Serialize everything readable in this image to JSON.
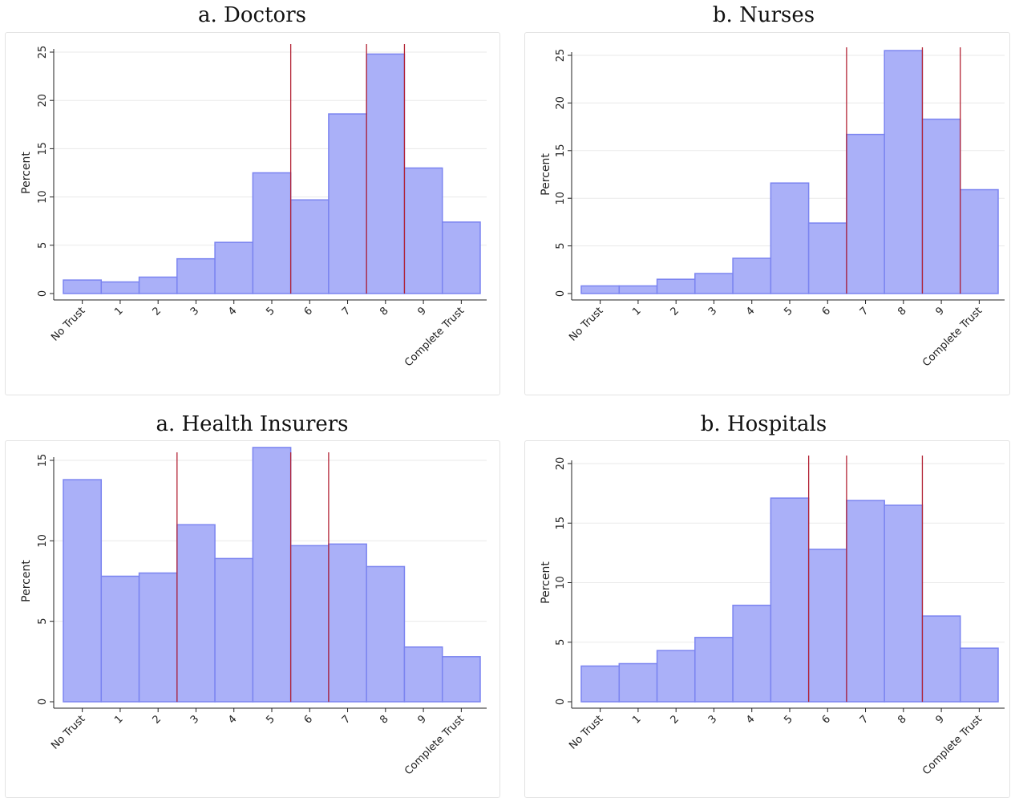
{
  "categories": [
    "No Trust",
    "1",
    "2",
    "3",
    "4",
    "5",
    "6",
    "7",
    "8",
    "9",
    "Complete Trust"
  ],
  "colors": {
    "bar_fill": "#aab0f8",
    "bar_stroke": "#7b84f0",
    "ref_line": "#b22234",
    "grid": "#eaeaea"
  },
  "chart_data": [
    {
      "type": "bar",
      "title": "a. Doctors",
      "ylabel": "Percent",
      "xlabel": "",
      "ylim": [
        0,
        25
      ],
      "yticks": [
        0,
        5,
        10,
        15,
        20,
        25
      ],
      "grid": true,
      "categories": [
        "No Trust",
        "1",
        "2",
        "3",
        "4",
        "5",
        "6",
        "7",
        "8",
        "9",
        "Complete Trust"
      ],
      "values": [
        1.4,
        1.2,
        1.7,
        3.6,
        5.3,
        12.5,
        9.7,
        18.6,
        24.8,
        13.0,
        7.4
      ],
      "reference_lines": [
        5.5,
        7.5,
        8.5
      ]
    },
    {
      "type": "bar",
      "title": "b. Nurses",
      "ylabel": "Percent",
      "xlabel": "",
      "ylim": [
        0,
        25
      ],
      "yticks": [
        0,
        5,
        10,
        15,
        20,
        25
      ],
      "grid": true,
      "categories": [
        "No Trust",
        "1",
        "2",
        "3",
        "4",
        "5",
        "6",
        "7",
        "8",
        "9",
        "Complete Trust"
      ],
      "values": [
        0.8,
        0.8,
        1.5,
        2.1,
        3.7,
        11.6,
        7.4,
        16.7,
        25.5,
        18.3,
        10.9
      ],
      "reference_lines": [
        6.5,
        8.5,
        9.5
      ]
    },
    {
      "type": "bar",
      "title": "a. Health Insurers",
      "ylabel": "Percent",
      "xlabel": "",
      "ylim": [
        0,
        15
      ],
      "yticks": [
        0,
        5,
        10,
        15
      ],
      "grid": true,
      "categories": [
        "No Trust",
        "1",
        "2",
        "3",
        "4",
        "5",
        "6",
        "7",
        "8",
        "9",
        "Complete Trust"
      ],
      "values": [
        13.8,
        7.8,
        8.0,
        11.0,
        8.9,
        15.8,
        9.7,
        9.8,
        8.4,
        3.4,
        2.8
      ],
      "reference_lines": [
        2.5,
        5.5,
        6.5
      ]
    },
    {
      "type": "bar",
      "title": "b. Hospitals",
      "ylabel": "Percent",
      "xlabel": "",
      "ylim": [
        0,
        20
      ],
      "yticks": [
        0,
        5,
        10,
        15,
        20
      ],
      "grid": true,
      "categories": [
        "No Trust",
        "1",
        "2",
        "3",
        "4",
        "5",
        "6",
        "7",
        "8",
        "9",
        "Complete Trust"
      ],
      "values": [
        3.0,
        3.2,
        4.3,
        5.4,
        8.1,
        17.1,
        12.8,
        16.9,
        16.5,
        7.2,
        4.5
      ],
      "reference_lines": [
        5.5,
        6.5,
        8.5
      ]
    }
  ]
}
